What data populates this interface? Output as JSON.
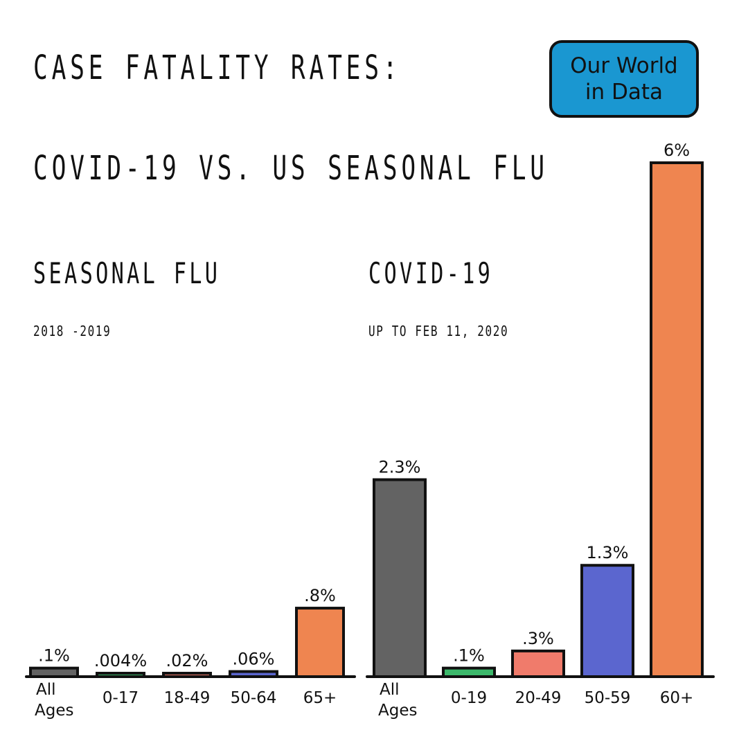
{
  "header": {
    "title_line1": "CASE FATALITY RATES:",
    "title_line2": "COVID-19 VS. US SEASONAL FLU",
    "badge_line1": "Our World",
    "badge_line2": "in Data"
  },
  "chart_data": [
    {
      "type": "bar",
      "title": "SEASONAL FLU",
      "subtitle": "2018 -2019",
      "categories": [
        "All Ages",
        "0-17",
        "18-49",
        "50-64",
        "65+"
      ],
      "values": [
        0.1,
        0.004,
        0.02,
        0.06,
        0.8
      ],
      "value_labels": [
        ".1%",
        ".004%",
        ".02%",
        ".06%",
        ".8%"
      ],
      "colors": [
        "#636363",
        "#3cb86b",
        "#f07b6b",
        "#5b66cf",
        "#ef8550"
      ],
      "xlabel": "",
      "ylabel": "",
      "ylim": [
        0,
        6
      ]
    },
    {
      "type": "bar",
      "title": "COVID-19",
      "subtitle": "UP TO FEB 11, 2020",
      "categories": [
        "All Ages",
        "0-19",
        "20-49",
        "50-59",
        "60+"
      ],
      "values": [
        2.3,
        0.1,
        0.3,
        1.3,
        6
      ],
      "value_labels": [
        "2.3%",
        ".1%",
        ".3%",
        "1.3%",
        "6%"
      ],
      "colors": [
        "#636363",
        "#3cb86b",
        "#f07b6b",
        "#5b66cf",
        "#ef8550"
      ],
      "xlabel": "",
      "ylabel": "",
      "ylim": [
        0,
        6
      ]
    }
  ]
}
